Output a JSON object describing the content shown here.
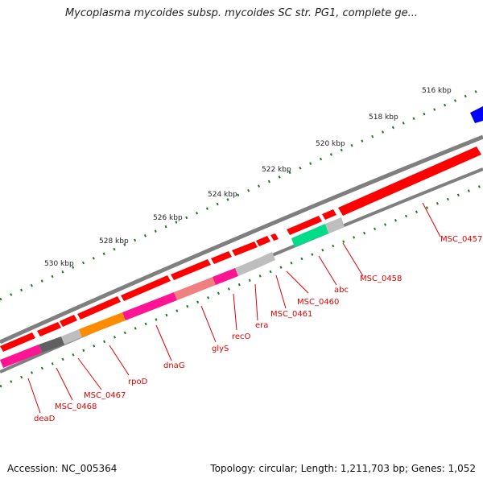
{
  "title": "Mycoplasma mycoides subsp. mycoides SC str. PG1, complete ge...",
  "footer": {
    "accession": "Accession: NC_005364",
    "summary": "Topology: circular; Length: 1,211,703 bp; Genes: 1,052"
  },
  "ruler": {
    "labels": [
      "516 kbp",
      "518 kbp",
      "520 kbp",
      "522 kbp",
      "524 kbp",
      "526 kbp",
      "528 kbp",
      "530 kbp"
    ]
  },
  "colors": {
    "backbone": "#7f7f7f",
    "forward_gene": "#ff0000",
    "tick": "#1a7a1a",
    "label": "#e00000",
    "blue_gene": "#0000ff"
  },
  "genes": [
    {
      "name": "MSC_0457",
      "color": "#ff0000"
    },
    {
      "name": "MSC_0458",
      "color": "#bebebe"
    },
    {
      "name": "abc",
      "color": "#00dd88"
    },
    {
      "name": "MSC_0460",
      "color": "#bebebe"
    },
    {
      "name": "MSC_0461",
      "color": "#bebebe"
    },
    {
      "name": "era",
      "color": "#bebebe"
    },
    {
      "name": "recO",
      "color": "#ff1493"
    },
    {
      "name": "glyS",
      "color": "#f08080"
    },
    {
      "name": "dnaG",
      "color": "#ff1493"
    },
    {
      "name": "rpoD",
      "color": "#ff8c00"
    },
    {
      "name": "MSC_0467",
      "color": "#bebebe"
    },
    {
      "name": "MSC_0468",
      "color": "#606060"
    },
    {
      "name": "deaD",
      "color": "#ff1493"
    }
  ]
}
